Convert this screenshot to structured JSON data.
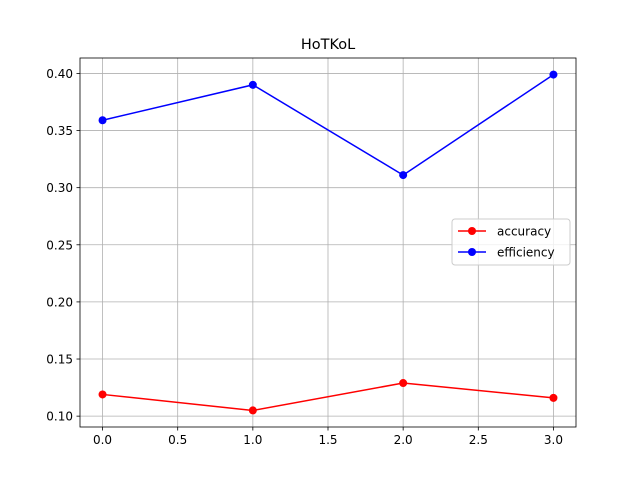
{
  "chart_data": {
    "type": "line",
    "title": "HoTKoL",
    "xlabel": "",
    "ylabel": "",
    "x": [
      0,
      1,
      2,
      3
    ],
    "series": [
      {
        "name": "accuracy",
        "color": "#ff0000",
        "marker": "circle",
        "values": [
          0.119,
          0.105,
          0.129,
          0.116
        ]
      },
      {
        "name": "efficiency",
        "color": "#0000ff",
        "marker": "circle",
        "values": [
          0.359,
          0.39,
          0.311,
          0.399
        ]
      }
    ],
    "xlim": [
      -0.15,
      3.15
    ],
    "ylim": [
      0.0905,
      0.4135
    ],
    "xticks": [
      "0.0",
      "0.5",
      "1.0",
      "1.5",
      "2.0",
      "2.5",
      "3.0"
    ],
    "yticks": [
      "0.10",
      "0.15",
      "0.20",
      "0.25",
      "0.30",
      "0.35",
      "0.40"
    ],
    "grid": true,
    "legend_position": "center-right"
  }
}
